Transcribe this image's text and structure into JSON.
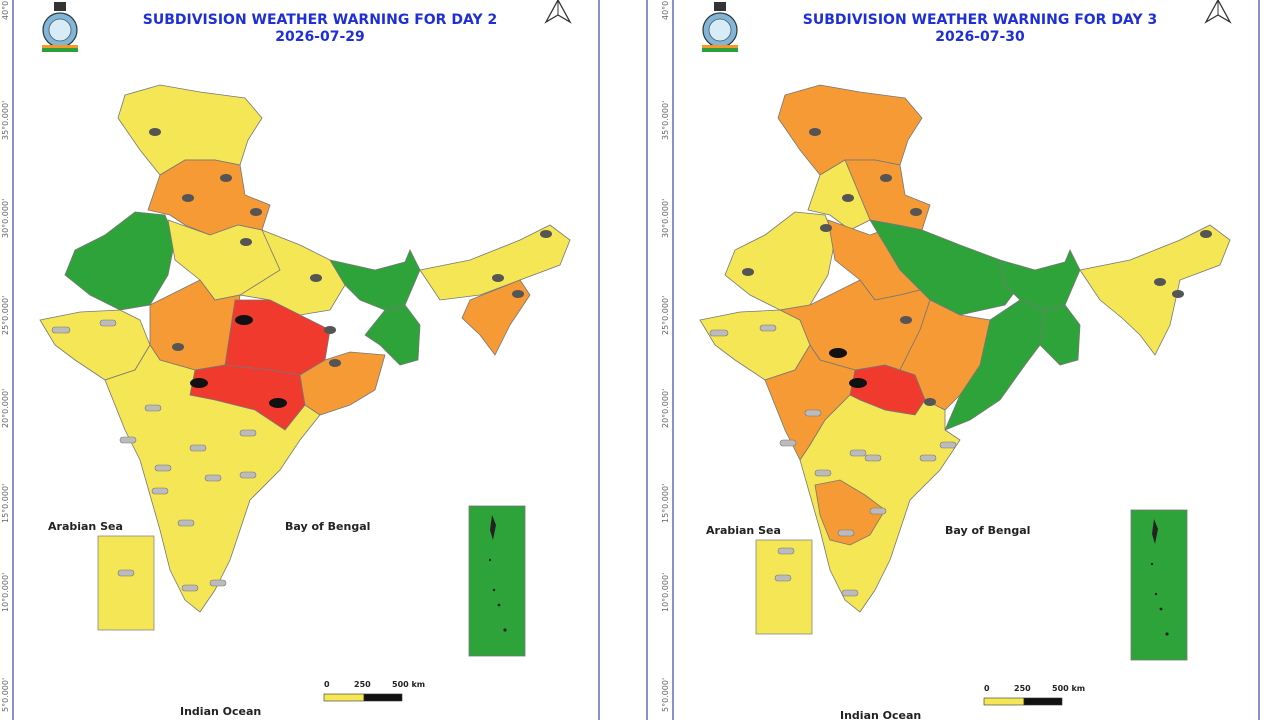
{
  "panels": [
    {
      "title": "SUBDIVISION WEATHER WARNING FOR DAY 2",
      "date": "2026-07-29",
      "seas": {
        "arabian": "Arabian Sea",
        "bengal": "Bay of Bengal",
        "indian": "Indian Ocean"
      },
      "scale": {
        "zero": "0",
        "mid": "250",
        "end": "500 km"
      },
      "lat_labels": [
        "40°0.000'",
        "35°0.000'",
        "30°0.000'",
        "25°0.000'",
        "20°0.000'",
        "15°0.000'",
        "10°0.000'",
        "5°0.000'"
      ]
    },
    {
      "title": "SUBDIVISION WEATHER WARNING FOR DAY 3",
      "date": "2026-07-30",
      "seas": {
        "arabian": "Arabian Sea",
        "bengal": "Bay of Bengal",
        "indian": "Indian Ocean"
      },
      "scale": {
        "zero": "0",
        "mid": "250",
        "end": "500 km"
      },
      "lat_labels": [
        "40°0.000'",
        "35°0.000'",
        "30°0.000'",
        "25°0.000'",
        "20°0.000'",
        "15°0.000'",
        "10°0.000'",
        "5°0.000'"
      ]
    }
  ],
  "legend_colors": {
    "red": "#f03a2e",
    "orange": "#f59a35",
    "yellow": "#f4e654",
    "green": "#2ea33a"
  },
  "icons": [
    "north-arrow-icon",
    "imd-emblem-icon",
    "rain-cloud-icon",
    "wind-icon"
  ]
}
